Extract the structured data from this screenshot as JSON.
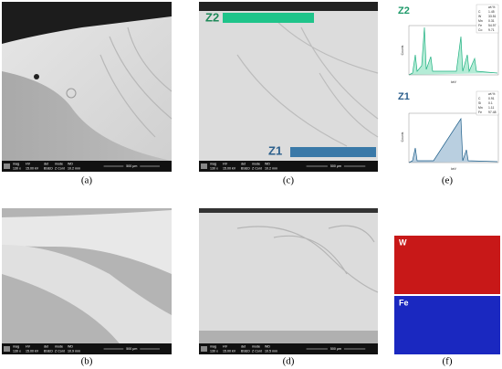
{
  "panels": [
    {
      "label": "(a)",
      "info": {
        "headers": [
          "mag",
          "HV",
          "det",
          "mode",
          "WD"
        ],
        "values": [
          "130 x",
          "15.00 kV",
          "BSED",
          "Z Cont",
          "10.2 mm"
        ],
        "scale": "500 μm"
      }
    },
    {
      "label": "(b)",
      "info": {
        "headers": [
          "mag",
          "HV",
          "det",
          "mode",
          "WD"
        ],
        "values": [
          "130 x",
          "15.00 kV",
          "BSED",
          "Z Cont",
          "10.9 mm"
        ],
        "scale": "500 μm"
      }
    },
    {
      "label": "(c)",
      "zones": [
        "Z2",
        "Z1"
      ],
      "info": {
        "headers": [
          "mag",
          "HV",
          "det",
          "mode",
          "WD"
        ],
        "values": [
          "130 x",
          "15.00 kV",
          "BSED",
          "Z Cont",
          "10.2 mm"
        ],
        "scale": "500 μm"
      }
    },
    {
      "label": "(d)",
      "info": {
        "headers": [
          "mag",
          "HV",
          "det",
          "mode",
          "WD"
        ],
        "values": [
          "130 x",
          "15.00 kV",
          "BSED",
          "Z Cont",
          "10.5 mm"
        ],
        "scale": "500 μm"
      }
    },
    {
      "label": "(e)",
      "spectra": [
        {
          "zone": "Z2",
          "y_label": "Counts",
          "x_label": "keV",
          "header": "wt.%",
          "rows": [
            [
              "C",
              "1.45"
            ],
            [
              "W",
              "33.51"
            ],
            [
              "Mn",
              "0.31"
            ],
            [
              "Fe",
              "54.97"
            ],
            [
              "Co",
              "9.71"
            ]
          ]
        },
        {
          "zone": "Z1",
          "y_label": "Counts",
          "x_label": "keV",
          "header": "wt.%",
          "rows": [
            [
              "C",
              "0.91"
            ],
            [
              "Si",
              "0.1"
            ],
            [
              "Mn",
              "1.11"
            ],
            [
              "Fe",
              "97.48"
            ]
          ]
        }
      ]
    },
    {
      "label": "(f)",
      "maps": [
        "W",
        "Fe"
      ]
    }
  ]
}
